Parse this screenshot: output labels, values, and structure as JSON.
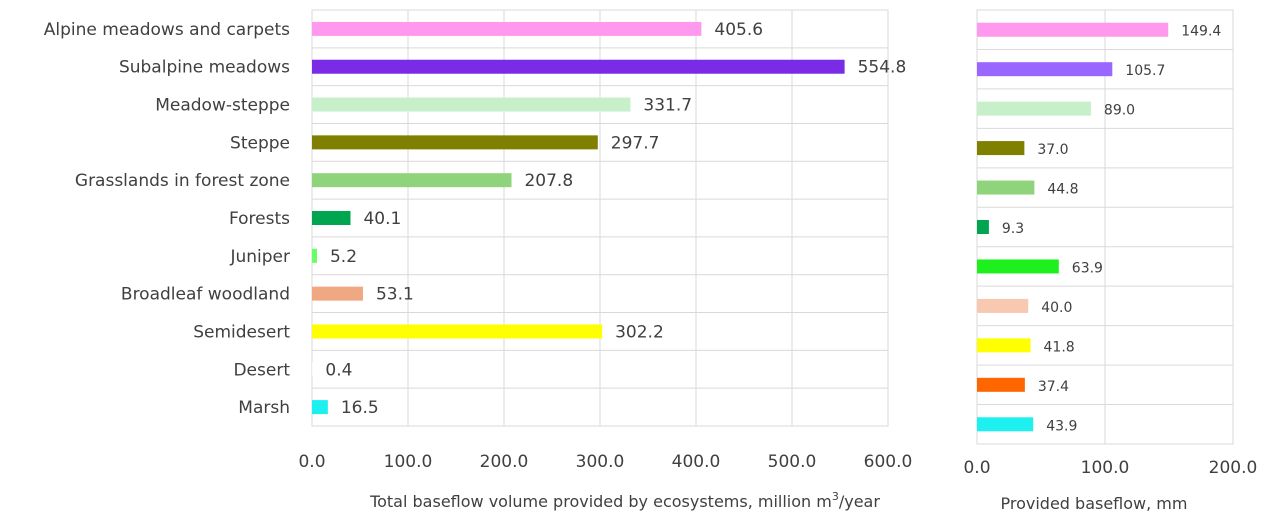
{
  "chart_data": [
    {
      "type": "bar",
      "orientation": "horizontal",
      "categories": [
        "Alpine meadows and carpets",
        "Subalpine meadows",
        "Meadow-steppe",
        "Steppe",
        "Grasslands in forest zone",
        "Forests",
        "Juniper",
        "Broadleaf woodland",
        "Semidesert",
        "Desert",
        "Marsh"
      ],
      "values": [
        405.6,
        554.8,
        331.7,
        297.7,
        207.8,
        40.1,
        5.2,
        53.1,
        302.2,
        0.4,
        16.5
      ],
      "value_labels": [
        "405.6",
        "554.8",
        "331.7",
        "297.7",
        "207.8",
        "40.1",
        "5.2",
        "53.1",
        "302.2",
        "0.4",
        "16.5"
      ],
      "colors": [
        "#ff99ee",
        "#7a2be6",
        "#c6efca",
        "#7f7f00",
        "#8fd47a",
        "#00a550",
        "#66ff66",
        "#f0a883",
        "#ffff00",
        "#ffffff",
        "#1ef0f0"
      ],
      "xlabel_main": "Total baseflow volume provided by ecosystems, million m",
      "xlabel_sup": "3",
      "xlabel_end": "/year",
      "xlim": [
        0,
        600
      ],
      "xticks": [
        0,
        100,
        200,
        300,
        400,
        500,
        600
      ],
      "xtick_labels": [
        "0.0",
        "100.0",
        "200.0",
        "300.0",
        "400.0",
        "500.0",
        "600.0"
      ],
      "grid": true,
      "legend": "none"
    },
    {
      "type": "bar",
      "orientation": "horizontal",
      "values": [
        149.4,
        105.7,
        89.0,
        37.0,
        44.8,
        9.3,
        63.9,
        40.0,
        41.8,
        37.4,
        43.9
      ],
      "value_labels": [
        "149.4",
        "105.7",
        "89.0",
        "37.0",
        "44.8",
        "9.3",
        "63.9",
        "40.0",
        "41.8",
        "37.4",
        "43.9"
      ],
      "colors": [
        "#ff99ee",
        "#9966ff",
        "#c6efca",
        "#7f7f00",
        "#8fd47a",
        "#00a550",
        "#1ef01e",
        "#f8c8b0",
        "#ffff00",
        "#ff6600",
        "#1ef0f0"
      ],
      "xlabel": "Provided baseflow, mm",
      "xlim": [
        0,
        200
      ],
      "xticks": [
        0,
        100,
        200
      ],
      "xtick_labels": [
        "0.0",
        "100.0",
        "200.0"
      ],
      "grid": true,
      "legend": "none"
    }
  ]
}
